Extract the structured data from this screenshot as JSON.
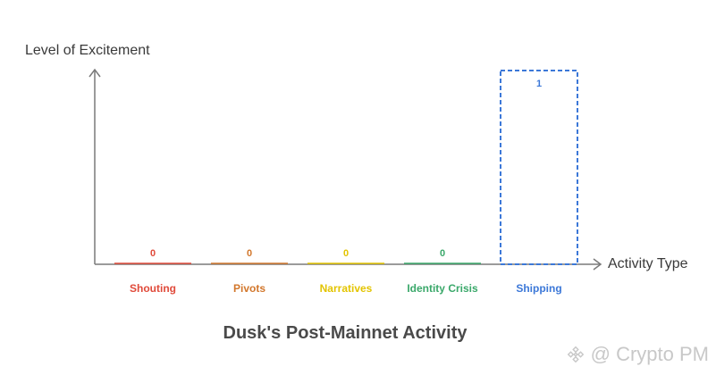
{
  "chart_data": {
    "type": "bar",
    "title": "Dusk's Post-Mainnet Activity",
    "xlabel": "Activity Type",
    "ylabel": "Level of Excitement",
    "categories": [
      "Shouting",
      "Pivots",
      "Narratives",
      "Identity Crisis",
      "Shipping"
    ],
    "values": [
      0,
      0,
      0,
      0,
      1
    ],
    "category_colors": [
      "#e04a3a",
      "#d2772c",
      "#e3c400",
      "#3aa86a",
      "#3c78d8"
    ],
    "ylim": [
      0,
      1
    ],
    "grid": false,
    "legend": "none",
    "bar_style": "dashed-outline"
  },
  "watermark": {
    "text": "@ Crypto PM",
    "icon": "binance-logo-icon"
  },
  "colors": {
    "axis": "#7a7a7a",
    "text": "#3a3a3a",
    "title": "#4a4a4a"
  }
}
